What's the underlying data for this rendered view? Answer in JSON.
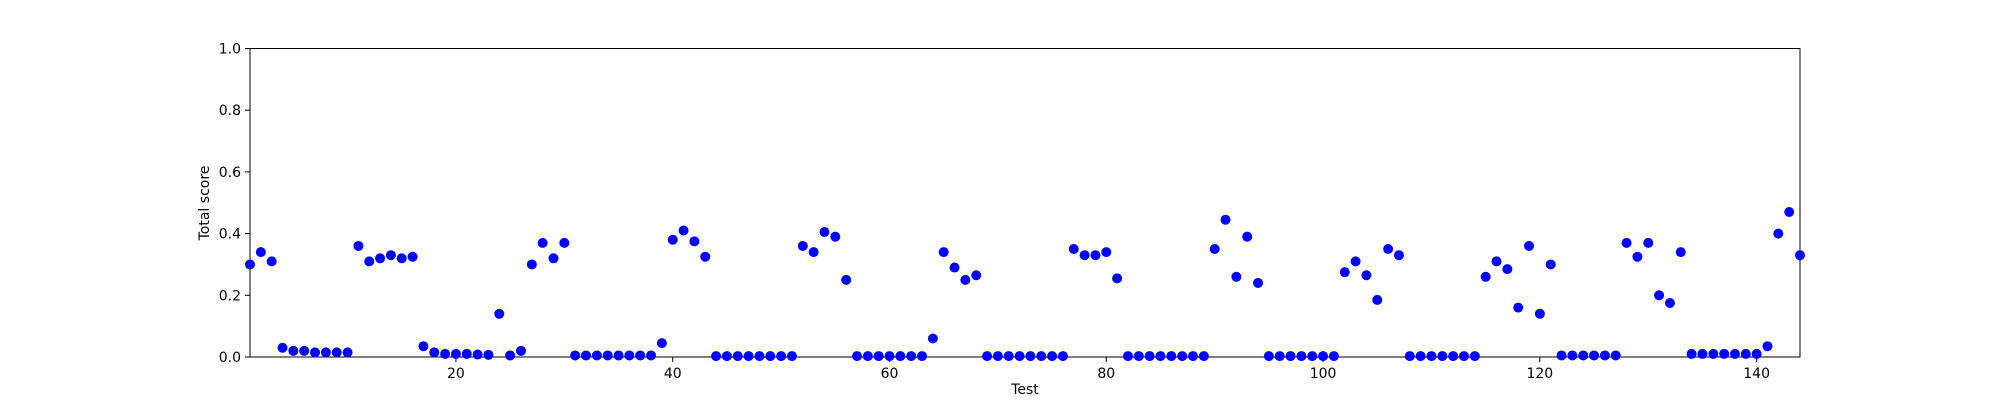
{
  "chart_data": {
    "type": "scatter",
    "xlabel": "Test",
    "ylabel": "Total score",
    "color": "#0000ff",
    "x": [
      1,
      2,
      3,
      4,
      5,
      6,
      7,
      8,
      9,
      10,
      11,
      12,
      13,
      14,
      15,
      16,
      17,
      18,
      19,
      20,
      21,
      22,
      23,
      24,
      25,
      26,
      27,
      28,
      29,
      30,
      31,
      32,
      33,
      34,
      35,
      36,
      37,
      38,
      39,
      40,
      41,
      42,
      43,
      44,
      45,
      46,
      47,
      48,
      49,
      50,
      51,
      52,
      53,
      54,
      55,
      56,
      57,
      58,
      59,
      60,
      61,
      62,
      63,
      64,
      65,
      66,
      67,
      68,
      69,
      70,
      71,
      72,
      73,
      74,
      75,
      76,
      77,
      78,
      79,
      80,
      81,
      82,
      83,
      84,
      85,
      86,
      87,
      88,
      89,
      90,
      91,
      92,
      93,
      94,
      95,
      96,
      97,
      98,
      99,
      100,
      101,
      102,
      103,
      104,
      105,
      106,
      107,
      108,
      109,
      110,
      111,
      112,
      113,
      114,
      115,
      116,
      117,
      118,
      119,
      120,
      121,
      122,
      123,
      124,
      125,
      126,
      127,
      128,
      129,
      130,
      131,
      132,
      133,
      134,
      135,
      136,
      137,
      138,
      139,
      140,
      141,
      142,
      143,
      144
    ],
    "values": [
      0.3,
      0.34,
      0.31,
      0.03,
      0.02,
      0.02,
      0.015,
      0.015,
      0.015,
      0.015,
      0.36,
      0.31,
      0.32,
      0.33,
      0.32,
      0.325,
      0.035,
      0.015,
      0.01,
      0.01,
      0.01,
      0.008,
      0.007,
      0.14,
      0.005,
      0.02,
      0.3,
      0.37,
      0.32,
      0.37,
      0.005,
      0.005,
      0.005,
      0.005,
      0.005,
      0.005,
      0.005,
      0.005,
      0.045,
      0.38,
      0.41,
      0.375,
      0.325,
      0.003,
      0.003,
      0.003,
      0.003,
      0.003,
      0.003,
      0.003,
      0.003,
      0.36,
      0.34,
      0.405,
      0.39,
      0.25,
      0.003,
      0.003,
      0.003,
      0.003,
      0.003,
      0.003,
      0.003,
      0.06,
      0.34,
      0.29,
      0.25,
      0.265,
      0.003,
      0.003,
      0.003,
      0.003,
      0.003,
      0.003,
      0.003,
      0.003,
      0.35,
      0.33,
      0.33,
      0.34,
      0.255,
      0.003,
      0.003,
      0.003,
      0.003,
      0.003,
      0.003,
      0.003,
      0.003,
      0.35,
      0.445,
      0.26,
      0.39,
      0.24,
      0.003,
      0.003,
      0.003,
      0.003,
      0.003,
      0.003,
      0.003,
      0.275,
      0.31,
      0.265,
      0.185,
      0.35,
      0.33,
      0.003,
      0.003,
      0.003,
      0.003,
      0.003,
      0.003,
      0.003,
      0.26,
      0.31,
      0.285,
      0.16,
      0.36,
      0.14,
      0.3,
      0.005,
      0.005,
      0.005,
      0.005,
      0.005,
      0.005,
      0.37,
      0.325,
      0.37,
      0.2,
      0.175,
      0.34,
      0.01,
      0.01,
      0.01,
      0.01,
      0.01,
      0.01,
      0.01,
      0.035,
      0.4,
      0.47,
      0.33
    ],
    "xlim": [
      1,
      144
    ],
    "ylim": [
      0,
      1
    ],
    "xticks": [
      20,
      40,
      60,
      80,
      100,
      120,
      140
    ],
    "yticks": [
      {
        "value": 0,
        "label": "0.0"
      },
      {
        "value": 0.2,
        "label": "0.2"
      },
      {
        "value": 0.4,
        "label": "0.4"
      },
      {
        "value": 0.6,
        "label": "0.6"
      },
      {
        "value": 0.8,
        "label": "0.8"
      },
      {
        "value": 1,
        "label": "1.0"
      }
    ]
  }
}
